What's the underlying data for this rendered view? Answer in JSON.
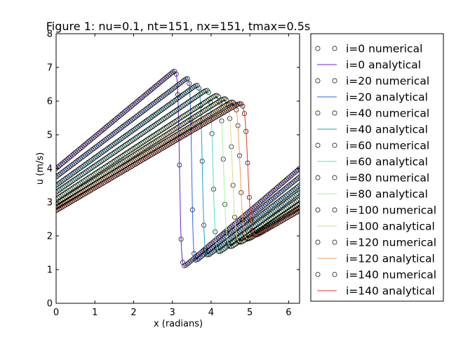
{
  "chart_data": {
    "type": "line",
    "title": "Figure 1: nu=0.1, nt=151, nx=151, tmax=0.5s",
    "xlabel": "x (radians)",
    "ylabel": "u (m/s)",
    "xlim": [
      0,
      6.283
    ],
    "ylim": [
      0,
      8
    ],
    "xticks": [
      "0",
      "1",
      "2",
      "3",
      "4",
      "5",
      "6"
    ],
    "yticks": [
      "0",
      "1",
      "2",
      "3",
      "4",
      "5",
      "6",
      "7",
      "8"
    ],
    "grid": false,
    "legend_position": "right, outside plot area",
    "numerical_points_per_series": 151,
    "series": [
      {
        "name": "i=0 numerical",
        "style": "markers",
        "color": "#000000",
        "x": [
          0,
          3.07,
          3.3,
          6.283
        ],
        "y": [
          4.0,
          6.92,
          1.08,
          4.0
        ]
      },
      {
        "name": "i=0 analytical",
        "style": "line",
        "color": "#6a1fd6",
        "x": [
          0,
          3.07,
          3.3,
          6.283
        ],
        "y": [
          4.0,
          6.92,
          1.08,
          4.0
        ]
      },
      {
        "name": "i=20 numerical",
        "style": "markers",
        "color": "#000000",
        "x": [
          0,
          3.4,
          3.6,
          6.283
        ],
        "y": [
          3.75,
          6.7,
          1.25,
          3.75
        ]
      },
      {
        "name": "i=20 analytical",
        "style": "line",
        "color": "#2f62e8",
        "x": [
          0,
          3.4,
          3.6,
          6.283
        ],
        "y": [
          3.75,
          6.7,
          1.25,
          3.75
        ]
      },
      {
        "name": "i=40 numerical",
        "style": "markers",
        "color": "#000000",
        "x": [
          0,
          3.65,
          3.9,
          6.283
        ],
        "y": [
          3.5,
          6.5,
          1.4,
          3.5
        ]
      },
      {
        "name": "i=40 analytical",
        "style": "line",
        "color": "#15a4c9",
        "x": [
          0,
          3.65,
          3.9,
          6.283
        ],
        "y": [
          3.5,
          6.5,
          1.4,
          3.5
        ]
      },
      {
        "name": "i=60 numerical",
        "style": "markers",
        "color": "#000000",
        "x": [
          0,
          3.9,
          4.2,
          6.283
        ],
        "y": [
          3.3,
          6.35,
          1.5,
          3.3
        ]
      },
      {
        "name": "i=60 analytical",
        "style": "line",
        "color": "#52dccd",
        "x": [
          0,
          3.9,
          4.2,
          6.283
        ],
        "y": [
          3.3,
          6.35,
          1.5,
          3.3
        ]
      },
      {
        "name": "i=80 numerical",
        "style": "markers",
        "color": "#000000",
        "x": [
          0,
          4.15,
          4.5,
          6.283
        ],
        "y": [
          3.1,
          6.2,
          1.65,
          3.1
        ]
      },
      {
        "name": "i=80 analytical",
        "style": "line",
        "color": "#a6f2a0",
        "x": [
          0,
          4.15,
          4.5,
          6.283
        ],
        "y": [
          3.1,
          6.2,
          1.65,
          3.1
        ]
      },
      {
        "name": "i=100 numerical",
        "style": "markers",
        "color": "#000000",
        "x": [
          0,
          4.35,
          4.75,
          6.283
        ],
        "y": [
          2.95,
          6.1,
          1.78,
          2.95
        ]
      },
      {
        "name": "i=100 analytical",
        "style": "line",
        "color": "#d8d887",
        "x": [
          0,
          4.35,
          4.75,
          6.283
        ],
        "y": [
          2.95,
          6.1,
          1.78,
          2.95
        ]
      },
      {
        "name": "i=120 numerical",
        "style": "markers",
        "color": "#000000",
        "x": [
          0,
          4.55,
          4.95,
          6.283
        ],
        "y": [
          2.85,
          6.0,
          1.88,
          2.85
        ]
      },
      {
        "name": "i=120 analytical",
        "style": "line",
        "color": "#f59e53",
        "x": [
          0,
          4.55,
          4.95,
          6.283
        ],
        "y": [
          2.85,
          6.0,
          1.88,
          2.85
        ]
      },
      {
        "name": "i=140 numerical",
        "style": "markers",
        "color": "#000000",
        "x": [
          0,
          4.75,
          5.15,
          6.283
        ],
        "y": [
          2.75,
          5.95,
          2.0,
          2.75
        ]
      },
      {
        "name": "i=140 analytical",
        "style": "line",
        "color": "#e8341f",
        "x": [
          0,
          4.75,
          5.15,
          6.283
        ],
        "y": [
          2.75,
          5.95,
          2.0,
          2.75
        ]
      }
    ]
  }
}
